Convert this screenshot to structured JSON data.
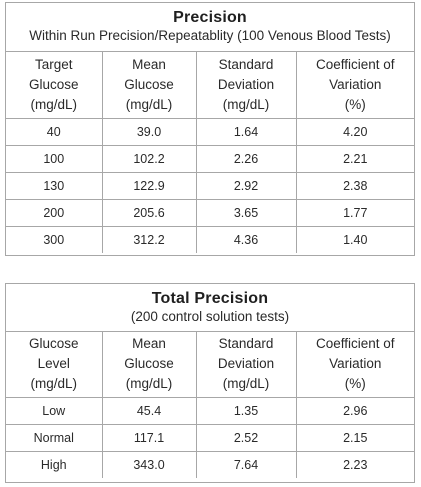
{
  "precision": {
    "title": "Precision",
    "subtitle": "Within Run Precision/Repeatablity (100 Venous Blood Tests)",
    "headers": [
      [
        "Target",
        "Glucose",
        "(mg/dL)"
      ],
      [
        "Mean",
        "Glucose",
        "(mg/dL)"
      ],
      [
        "Standard",
        "Deviation",
        "(mg/dL)"
      ],
      [
        "Coefficient of",
        "Variation",
        "(%)"
      ]
    ],
    "rows": [
      [
        "40",
        "39.0",
        "1.64",
        "4.20"
      ],
      [
        "100",
        "102.2",
        "2.26",
        "2.21"
      ],
      [
        "130",
        "122.9",
        "2.92",
        "2.38"
      ],
      [
        "200",
        "205.6",
        "3.65",
        "1.77"
      ],
      [
        "300",
        "312.2",
        "4.36",
        "1.40"
      ]
    ]
  },
  "total_precision": {
    "title": "Total Precision",
    "subtitle": "(200 control solution tests)",
    "headers": [
      [
        "Glucose",
        "Level",
        "(mg/dL)"
      ],
      [
        "Mean",
        "Glucose",
        "(mg/dL)"
      ],
      [
        "Standard",
        "Deviation",
        "(mg/dL)"
      ],
      [
        "Coefficient of",
        "Variation",
        "(%)"
      ]
    ],
    "rows": [
      [
        "Low",
        "45.4",
        "1.35",
        "2.96"
      ],
      [
        "Normal",
        "117.1",
        "2.52",
        "2.15"
      ],
      [
        "High",
        "343.0",
        "7.64",
        "2.23"
      ]
    ]
  }
}
